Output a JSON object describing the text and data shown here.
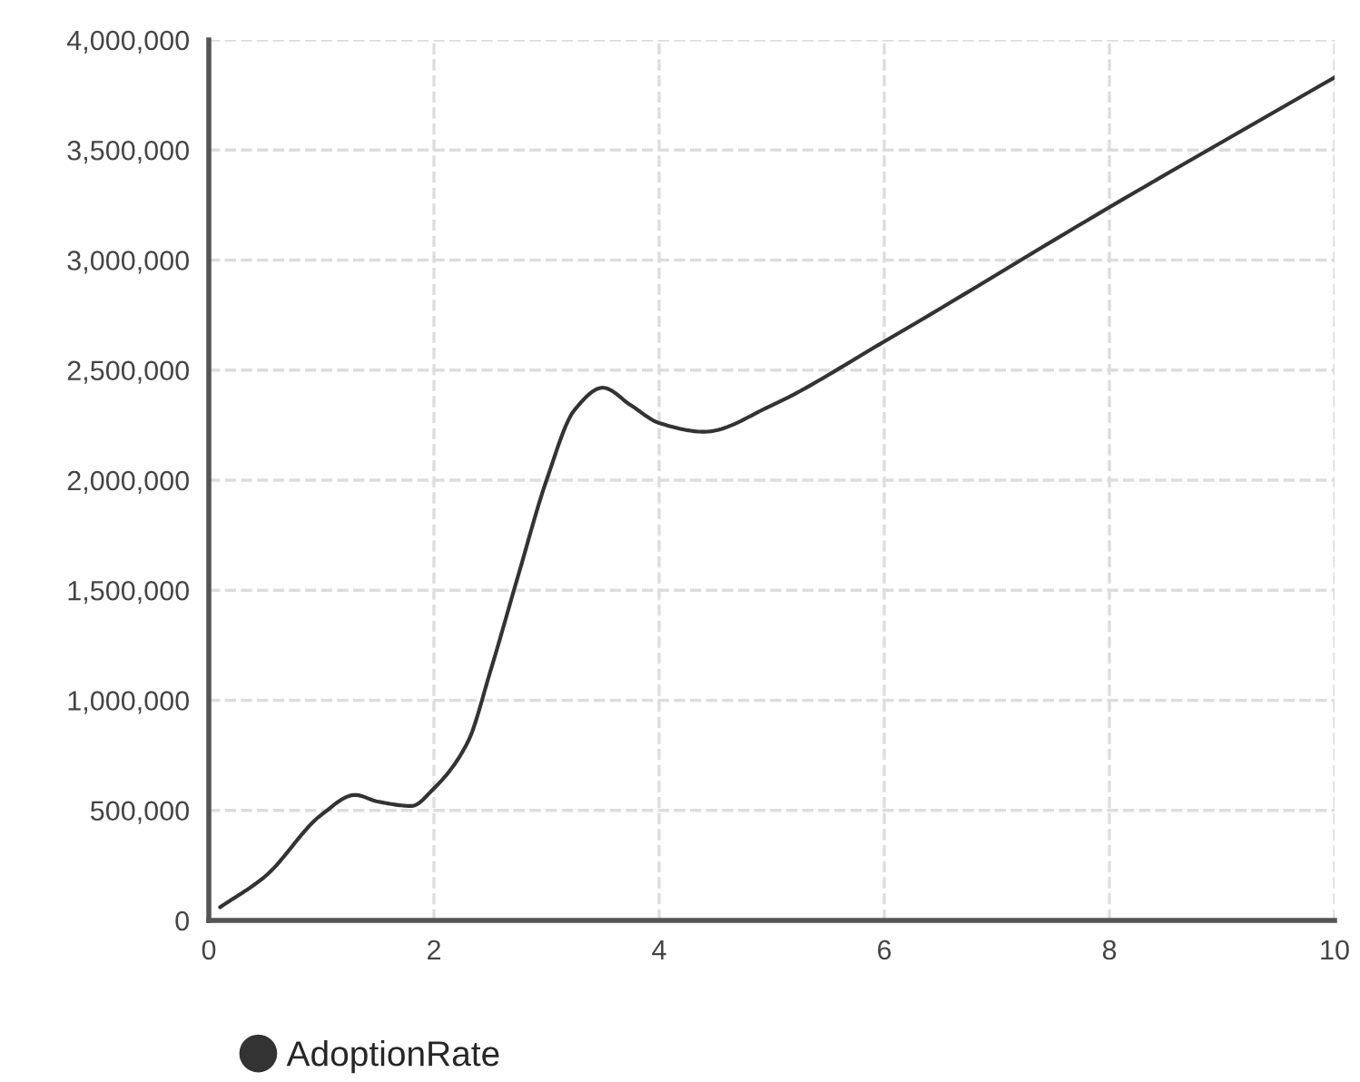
{
  "chart_data": {
    "type": "line",
    "x": [
      0.1,
      0.5,
      1.0,
      1.3,
      1.5,
      1.8,
      2.0,
      2.3,
      2.5,
      2.75,
      3.0,
      3.25,
      3.5,
      3.75,
      4.0,
      4.4,
      5,
      6,
      8,
      10
    ],
    "series": [
      {
        "name": "AdoptionRate",
        "color": "#333333",
        "values": [
          60000,
          200000,
          480000,
          570000,
          540000,
          520000,
          600000,
          810000,
          1130000,
          1570000,
          2000000,
          2320000,
          2420000,
          2340000,
          2260000,
          2220000,
          2340000,
          2630000,
          3240000,
          3830000
        ]
      }
    ],
    "xlim": [
      0,
      10
    ],
    "xticks": [
      0,
      2,
      4,
      6,
      8,
      10
    ],
    "ylim": [
      0,
      4000000
    ],
    "yticks": [
      {
        "value": 0,
        "label": "0"
      },
      {
        "value": 500000,
        "label": "500,000"
      },
      {
        "value": 1000000,
        "label": "1,000,000"
      },
      {
        "value": 1500000,
        "label": "1,500,000"
      },
      {
        "value": 2000000,
        "label": "2,000,000"
      },
      {
        "value": 2500000,
        "label": "2,500,000"
      },
      {
        "value": 3000000,
        "label": "3,000,000"
      },
      {
        "value": 3500000,
        "label": "3,500,000"
      },
      {
        "value": 4000000,
        "label": "4,000,000"
      }
    ],
    "grid": true,
    "legend": "bottom left",
    "marker": "none",
    "line_style": "solid"
  }
}
